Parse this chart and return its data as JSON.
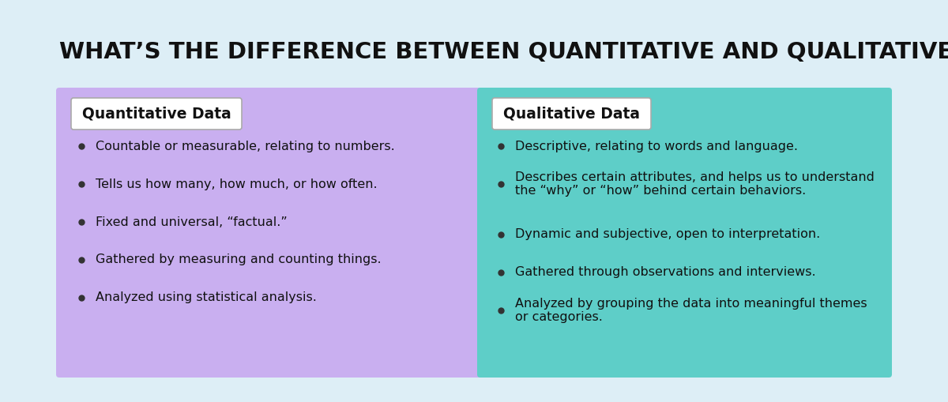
{
  "title": "WHAT’S THE DIFFERENCE BETWEEN QUANTITATIVE AND QUALITATIVE DATA?",
  "background_color": "#ddeef6",
  "left_panel_color": "#c9aff0",
  "right_panel_color": "#5ecec8",
  "header_bg_color": "#ffffff",
  "header_text_color": "#111111",
  "bullet_text_color": "#111111",
  "title_color": "#111111",
  "left_title": "Quantitative Data",
  "right_title": "Qualitative Data",
  "left_bullets": [
    "Countable or measurable, relating to numbers.",
    "Tells us how many, how much, or how often.",
    "Fixed and universal, “factual.”",
    "Gathered by measuring and counting things.",
    "Analyzed using statistical analysis."
  ],
  "right_bullets": [
    "Descriptive, relating to words and language.",
    "Describes certain attributes, and helps us to understand\nthe “why” or “how” behind certain behaviors.",
    "Dynamic and subjective, open to interpretation.",
    "Gathered through observations and interviews.",
    "Analyzed by grouping the data into meaningful themes\nor categories."
  ],
  "title_fontsize": 21,
  "header_fontsize": 13.5,
  "bullet_fontsize": 11.5,
  "fig_width": 12.0,
  "fig_height": 5.09,
  "dpi": 100
}
